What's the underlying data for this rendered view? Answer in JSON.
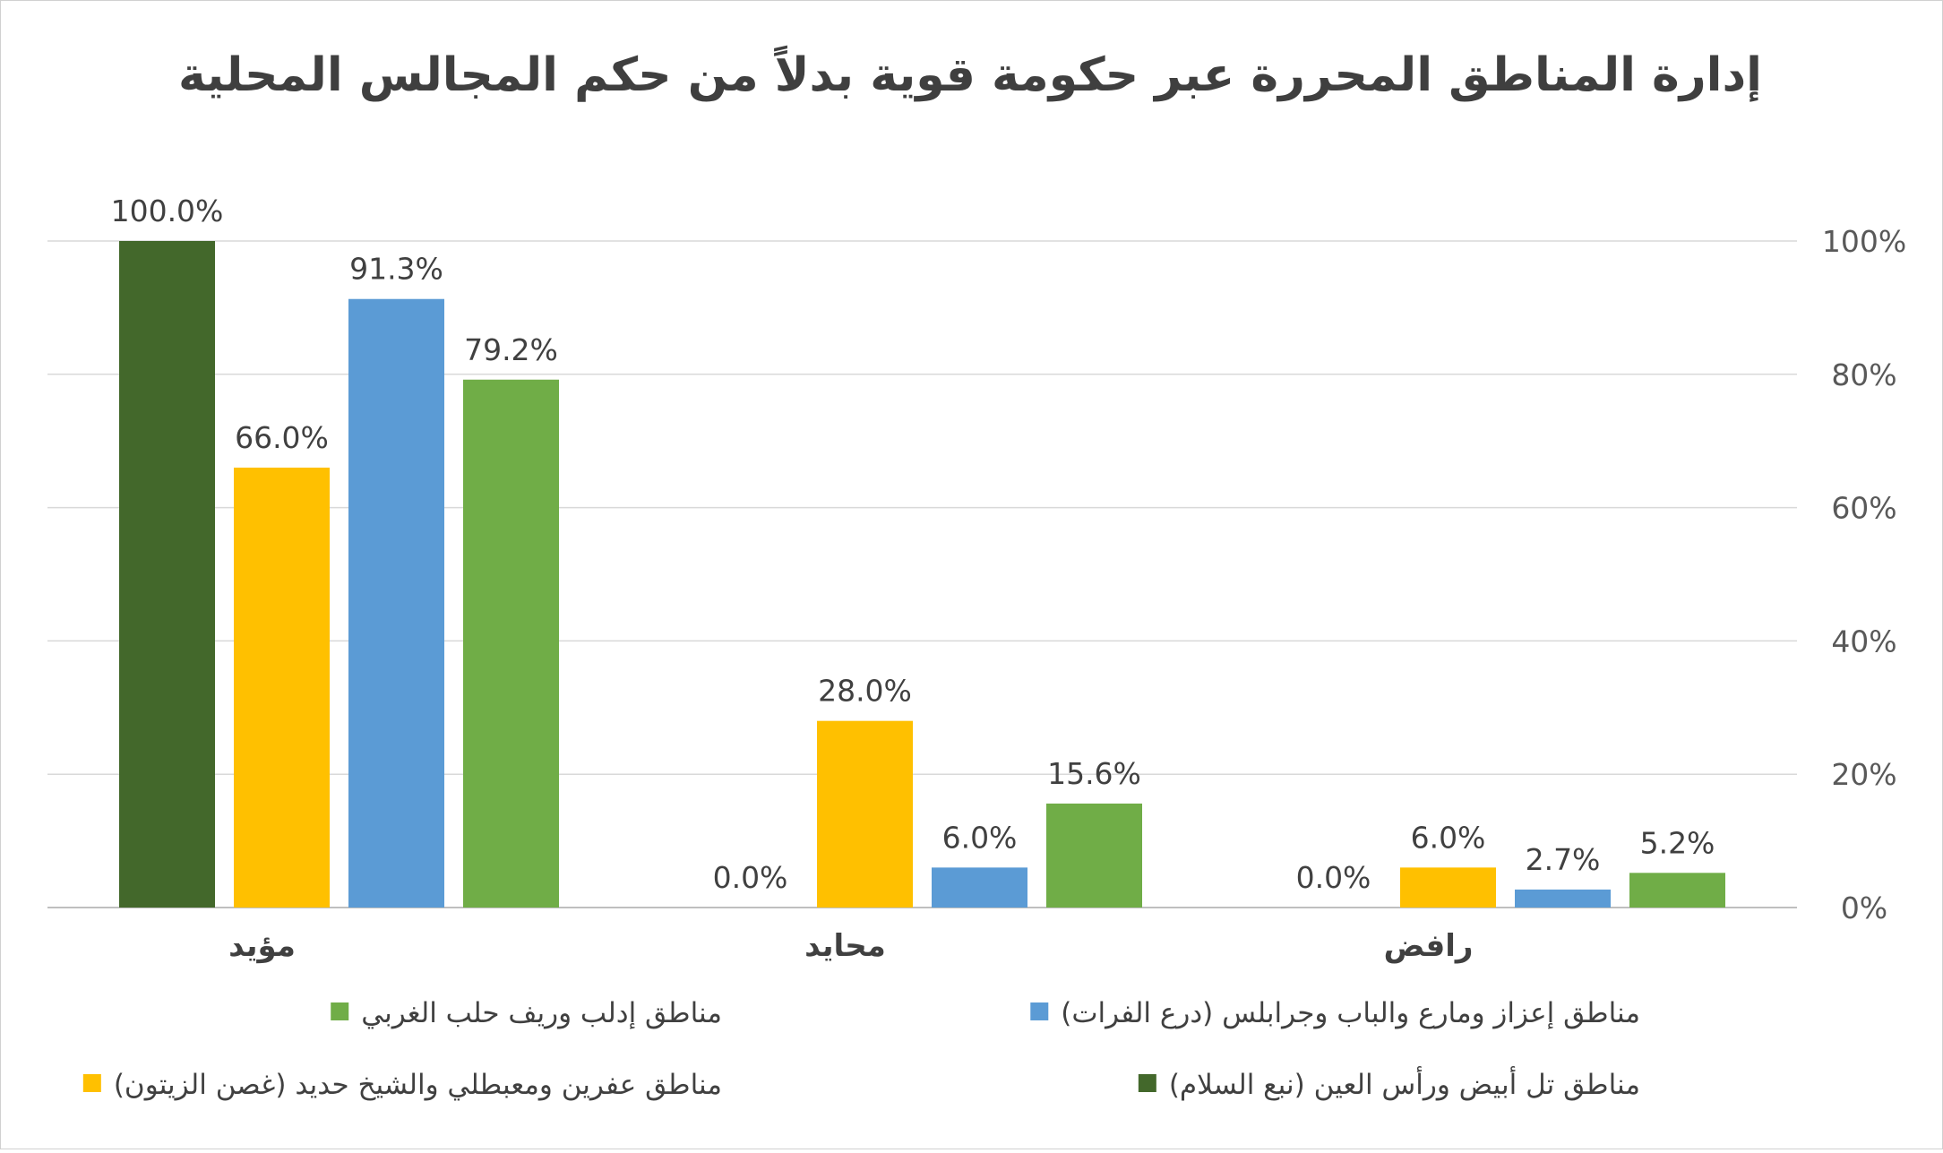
{
  "chart_data": {
    "type": "bar",
    "title": "إدارة المناطق المحررة عبر حكومة قوية بدلاً من حكم المجالس المحلية",
    "categories": [
      "مؤيد",
      "محايد",
      "رافض"
    ],
    "series": [
      {
        "name": "مناطق تل أبيض ورأس العين (نبع السلام)",
        "color": "#43682B",
        "values": [
          100.0,
          0.0,
          0.0
        ]
      },
      {
        "name": "مناطق عفرين ومعبطلي والشيخ حديد (غصن الزيتون)",
        "color": "#FFC000",
        "values": [
          66.0,
          28.0,
          6.0
        ]
      },
      {
        "name": "مناطق إعزاز ومارع والباب وجرابلس (درع الفرات)",
        "color": "#5B9BD5",
        "values": [
          91.3,
          6.0,
          2.7
        ]
      },
      {
        "name": "مناطق إدلب وريف حلب الغربي",
        "color": "#70AD47",
        "values": [
          79.2,
          15.6,
          5.2
        ]
      }
    ],
    "data_labels": [
      [
        "100.0%",
        "0.0%",
        "0.0%"
      ],
      [
        "66.0%",
        "28.0%",
        "6.0%"
      ],
      [
        "91.3%",
        "6.0%",
        "2.7%"
      ],
      [
        "79.2%",
        "15.6%",
        "5.2%"
      ]
    ],
    "y_ticks": [
      "0%",
      "20%",
      "40%",
      "60%",
      "80%",
      "100%"
    ],
    "ylim": [
      0,
      100
    ],
    "y_axis_side": "right",
    "grid": true,
    "legend_position": "bottom",
    "legend_order": [
      [
        "مناطق إعزاز ومارع والباب وجرابلس (درع الفرات)",
        "مناطق إدلب وريف حلب الغربي"
      ],
      [
        "مناطق تل أبيض ورأس العين (نبع السلام)",
        "مناطق عفرين ومعبطلي والشيخ حديد (غصن الزيتون)"
      ]
    ]
  }
}
